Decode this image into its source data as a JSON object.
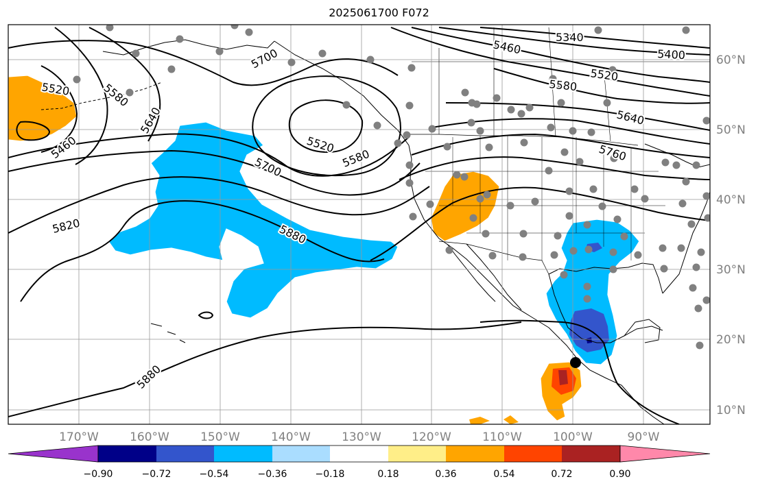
{
  "title": "2025061700 F072",
  "lon_labels": [
    "170°W",
    "160°W",
    "150°W",
    "140°W",
    "130°W",
    "120°W",
    "110°W",
    "100°W",
    "90°W"
  ],
  "lat_labels": [
    "60°N",
    "50°N",
    "40°N",
    "30°N",
    "20°N",
    "10°N"
  ],
  "colorbar": {
    "ticks": [
      "−0.90",
      "−0.72",
      "−0.54",
      "−0.36",
      "−0.18",
      "0.18",
      "0.36",
      "0.54",
      "0.72",
      "0.90"
    ],
    "colors": [
      "#9933cc",
      "#000088",
      "#3355cc",
      "#00bbff",
      "#aaddff",
      "#ffffff",
      "#ffee88",
      "#ffa500",
      "#ff4400",
      "#aa2222",
      "#ff88aa"
    ]
  },
  "contour_labels": [
    {
      "text": "5340"
    },
    {
      "text": "5400"
    },
    {
      "text": "5460"
    },
    {
      "text": "5520"
    },
    {
      "text": "5580"
    },
    {
      "text": "5640"
    },
    {
      "text": "5760"
    },
    {
      "text": "5520"
    },
    {
      "text": "5580"
    },
    {
      "text": "5700"
    },
    {
      "text": "5700"
    },
    {
      "text": "5520"
    },
    {
      "text": "5580"
    },
    {
      "text": "5640"
    },
    {
      "text": "5460"
    },
    {
      "text": "5820"
    },
    {
      "text": "5880"
    },
    {
      "text": "5880"
    }
  ],
  "colors": {
    "frame": "#000000",
    "grid": "#999999",
    "station": "#808080",
    "blue": "#00bbff",
    "darkblue": "#3355cc",
    "orange": "#ffa500",
    "red": "#ff4400",
    "darkred": "#aa2222"
  }
}
